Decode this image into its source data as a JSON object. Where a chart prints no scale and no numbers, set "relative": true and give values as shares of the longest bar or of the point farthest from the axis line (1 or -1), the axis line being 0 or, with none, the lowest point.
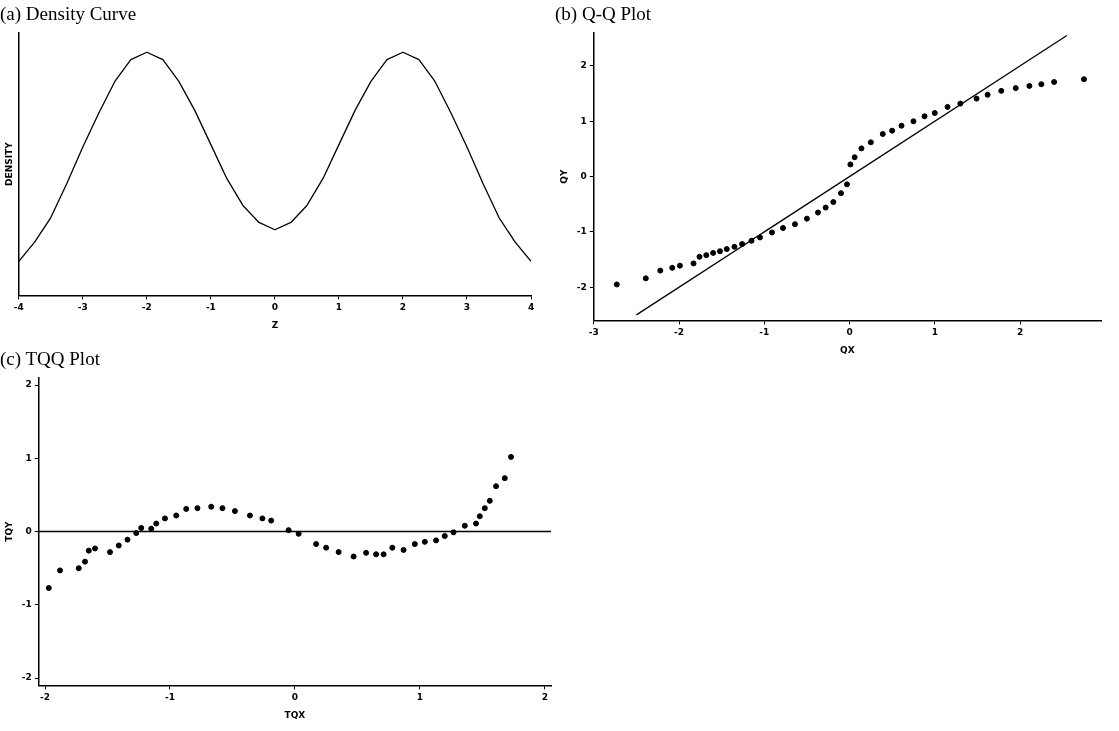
{
  "chart_data": [
    {
      "type": "line",
      "title": "(a) Density Curve",
      "xlabel": "Z",
      "ylabel": "DENSITY",
      "relative": true,
      "marker": "none",
      "color": "#000000",
      "x": [
        -4,
        -3.75,
        -3.5,
        -3.25,
        -3,
        -2.75,
        -2.5,
        -2.25,
        -2,
        -1.75,
        -1.5,
        -1.25,
        -1,
        -0.75,
        -0.5,
        -0.25,
        0,
        0.25,
        0.5,
        0.75,
        1,
        1.25,
        1.5,
        1.75,
        2,
        2.25,
        2.5,
        2.75,
        3,
        3.25,
        3.5,
        3.75,
        4
      ],
      "values": [
        0.14,
        0.22,
        0.32,
        0.46,
        0.61,
        0.75,
        0.88,
        0.97,
        1,
        0.97,
        0.88,
        0.76,
        0.62,
        0.48,
        0.37,
        0.3,
        0.27,
        0.3,
        0.37,
        0.48,
        0.62,
        0.76,
        0.88,
        0.97,
        1,
        0.97,
        0.88,
        0.75,
        0.61,
        0.46,
        0.32,
        0.22,
        0.14
      ],
      "xlim": [
        -4,
        4
      ],
      "xticks": [
        -4,
        -3,
        -2,
        -1,
        0,
        1,
        2,
        3,
        4
      ]
    },
    {
      "type": "scatter",
      "title": "(b) Q-Q Plot",
      "xlabel": "QX",
      "ylabel": "QY",
      "marker": "circle",
      "xlim": [
        -3,
        2.95
      ],
      "xticks": [
        -3,
        -2,
        -1,
        0,
        1,
        2
      ],
      "ylim": [
        -2.6,
        2.6
      ],
      "yticks": [
        -2,
        -1,
        0,
        1,
        2
      ],
      "series": [
        {
          "color": "#000000",
          "x": [
            -2.73,
            -2.39,
            -2.22,
            -2.08,
            -1.99,
            -1.83,
            -1.76,
            -1.68,
            -1.6,
            -1.52,
            -1.44,
            -1.35,
            -1.26,
            -1.15,
            -1.05,
            -0.91,
            -0.78,
            -0.64,
            -0.5,
            -0.37,
            -0.28,
            -0.19,
            -0.1,
            -0.03,
            0.01,
            0.06,
            0.14,
            0.25,
            0.39,
            0.5,
            0.61,
            0.75,
            0.88,
            1.0,
            1.15,
            1.3,
            1.49,
            1.62,
            1.78,
            1.95,
            2.11,
            2.25,
            2.4,
            2.75
          ],
          "values": [
            -1.95,
            -1.84,
            -1.7,
            -1.65,
            -1.61,
            -1.57,
            -1.45,
            -1.42,
            -1.38,
            -1.35,
            -1.31,
            -1.27,
            -1.22,
            -1.16,
            -1.1,
            -1.01,
            -0.93,
            -0.86,
            -0.76,
            -0.65,
            -0.56,
            -0.46,
            -0.3,
            -0.14,
            0.22,
            0.35,
            0.51,
            0.62,
            0.77,
            0.83,
            0.92,
            1.0,
            1.09,
            1.15,
            1.26,
            1.32,
            1.41,
            1.48,
            1.55,
            1.6,
            1.64,
            1.67,
            1.71,
            1.76
          ]
        },
        {
          "type": "line",
          "marker": "none",
          "color": "#000000",
          "x": [
            -2.5,
            2.55
          ],
          "values": [
            -2.5,
            2.55
          ]
        }
      ]
    },
    {
      "type": "scatter",
      "title": "(c) TQQ Plot",
      "xlabel": "TQX",
      "ylabel": "TQY",
      "marker": "circle",
      "color": "#000000",
      "xlim": [
        -2.05,
        2.05
      ],
      "xticks": [
        -2,
        -1,
        0,
        1,
        2
      ],
      "ylim": [
        -2.1,
        2.1
      ],
      "yticks": [
        -2,
        -1,
        0,
        1,
        2
      ],
      "x": [
        -1.97,
        -1.88,
        -1.73,
        -1.68,
        -1.65,
        -1.6,
        -1.48,
        -1.41,
        -1.34,
        -1.27,
        -1.23,
        -1.15,
        -1.11,
        -1.04,
        -0.95,
        -0.87,
        -0.78,
        -0.67,
        -0.58,
        -0.48,
        -0.36,
        -0.26,
        -0.19,
        -0.05,
        0.03,
        0.17,
        0.25,
        0.35,
        0.47,
        0.57,
        0.65,
        0.71,
        0.78,
        0.87,
        0.96,
        1.04,
        1.13,
        1.2,
        1.27,
        1.36,
        1.45,
        1.48,
        1.52,
        1.56,
        1.61,
        1.68,
        1.73
      ],
      "values": [
        -0.77,
        -0.53,
        -0.5,
        -0.41,
        -0.26,
        -0.23,
        -0.28,
        -0.19,
        -0.11,
        -0.02,
        0.05,
        0.04,
        0.11,
        0.18,
        0.22,
        0.31,
        0.32,
        0.34,
        0.32,
        0.28,
        0.22,
        0.18,
        0.15,
        0.02,
        -0.03,
        -0.17,
        -0.22,
        -0.28,
        -0.34,
        -0.29,
        -0.31,
        -0.31,
        -0.22,
        -0.25,
        -0.17,
        -0.14,
        -0.12,
        -0.06,
        -0.01,
        0.08,
        0.11,
        0.21,
        0.32,
        0.42,
        0.62,
        0.73,
        1.02
      ],
      "ref_lines": [
        {
          "axis": "y",
          "value": 0,
          "color": "#000000"
        }
      ]
    }
  ]
}
